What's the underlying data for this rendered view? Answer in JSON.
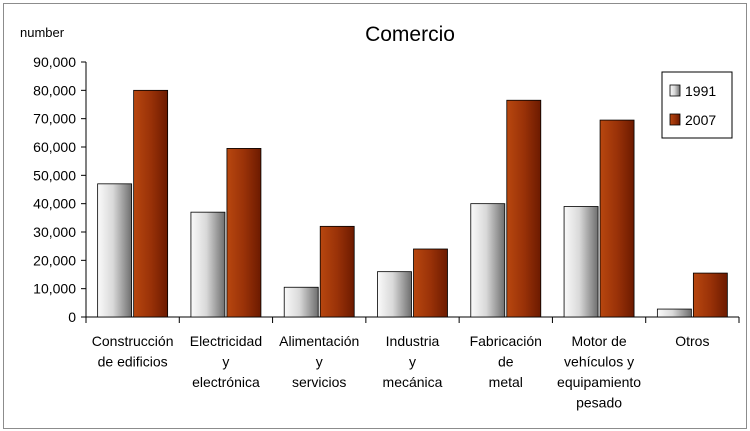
{
  "chart_data": {
    "type": "bar",
    "title": "Comercio",
    "ylabel": "number",
    "xlabel": "",
    "ylim": [
      0,
      90000
    ],
    "yticks": [
      "0",
      "10,000",
      "20,000",
      "30,000",
      "40,000",
      "50,000",
      "60,000",
      "70,000",
      "80,000",
      "90,000"
    ],
    "categories": [
      [
        "Construcción",
        "de edificios"
      ],
      [
        "Electricidad",
        "y",
        "electrónica"
      ],
      [
        "Alimentación",
        "y",
        "servicios"
      ],
      [
        "Industria",
        "y",
        "mecánica"
      ],
      [
        "Fabricación",
        "de",
        "metal"
      ],
      [
        "Motor de",
        "vehículos y",
        "equipamiento",
        "pesado"
      ],
      [
        "Otros"
      ]
    ],
    "series": [
      {
        "name": "1991",
        "values": [
          47000,
          37000,
          10500,
          16000,
          40000,
          39000,
          2800
        ]
      },
      {
        "name": "2007",
        "values": [
          80000,
          59500,
          32000,
          24000,
          76500,
          69500,
          15500
        ]
      }
    ],
    "legend_position": "top-right",
    "grid": false,
    "colors": {
      "s1991_light": "#f2f2f2",
      "s1991_dark": "#7a7a7a",
      "s2007_light": "#a33a0e",
      "s2007_dark": "#7a1d00"
    }
  }
}
